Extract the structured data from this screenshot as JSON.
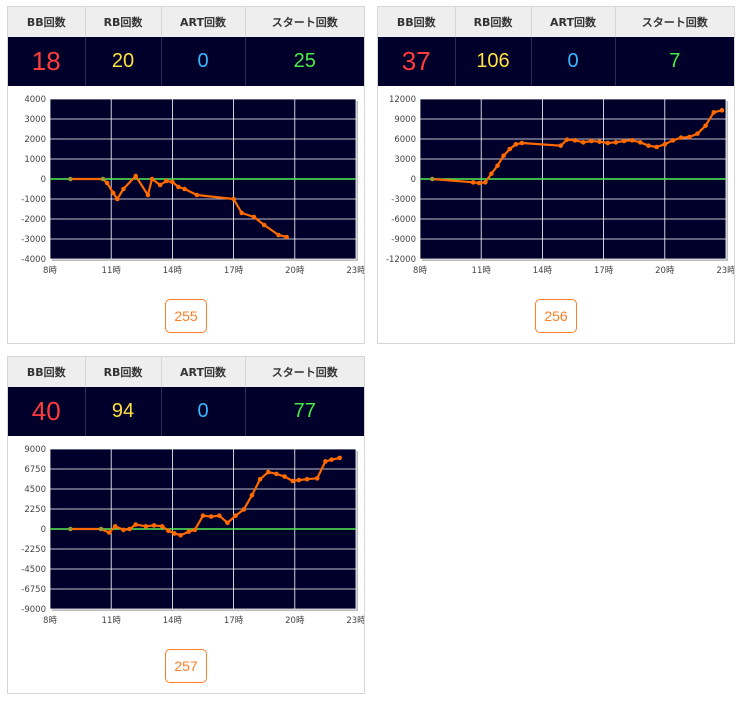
{
  "headers": {
    "bb": "BB回数",
    "rb": "RB回数",
    "art": "ART回数",
    "start": "スタート回数"
  },
  "colors": {
    "bb": "#ff3b3b",
    "rb": "#ffe040",
    "art": "#39b7ff",
    "start": "#44ee44",
    "line": "#ff6a00",
    "zero_line": "#55ee55",
    "plot_bg": "#00002b"
  },
  "cards": [
    {
      "stats": {
        "bb": "18",
        "rb": "20",
        "art": "0",
        "start": "25"
      },
      "button_label": "255",
      "chart_data": {
        "type": "line",
        "xlim": [
          8,
          23
        ],
        "xticks": [
          "8時",
          "11時",
          "14時",
          "17時",
          "20時",
          "23時"
        ],
        "ylim": [
          -4000,
          4000
        ],
        "yticks": [
          "4000",
          "3000",
          "2000",
          "1000",
          "0",
          "-1000",
          "-2000",
          "-3000",
          "-4000"
        ],
        "x": [
          9.0,
          10.6,
          10.8,
          11.1,
          11.3,
          11.6,
          12.2,
          12.8,
          13.0,
          13.4,
          13.7,
          14.0,
          14.3,
          14.6,
          15.2,
          17.0,
          17.4,
          18.0,
          18.5,
          19.2,
          19.6
        ],
        "values": [
          0,
          0,
          -200,
          -700,
          -1000,
          -500,
          150,
          -800,
          0,
          -300,
          -100,
          -150,
          -400,
          -500,
          -800,
          -1000,
          -1700,
          -1900,
          -2300,
          -2800,
          -2900
        ]
      }
    },
    {
      "stats": {
        "bb": "37",
        "rb": "106",
        "art": "0",
        "start": "7"
      },
      "button_label": "256",
      "chart_data": {
        "type": "line",
        "xlim": [
          8,
          23
        ],
        "xticks": [
          "8時",
          "11時",
          "14時",
          "17時",
          "20時",
          "23時"
        ],
        "ylim": [
          -12000,
          12000
        ],
        "yticks": [
          "12000",
          "9000",
          "6000",
          "3000",
          "0",
          "-3000",
          "-6000",
          "-9000",
          "-12000"
        ],
        "x": [
          8.6,
          10.6,
          10.9,
          11.2,
          11.5,
          11.8,
          12.1,
          12.4,
          12.7,
          13.0,
          14.9,
          15.2,
          15.6,
          16.0,
          16.4,
          16.8,
          17.2,
          17.6,
          18.0,
          18.4,
          18.8,
          19.2,
          19.6,
          20.0,
          20.4,
          20.8,
          21.2,
          21.6,
          22.0,
          22.4,
          22.8
        ],
        "values": [
          0,
          -500,
          -600,
          -500,
          800,
          2000,
          3500,
          4500,
          5200,
          5400,
          5000,
          5900,
          5800,
          5500,
          5700,
          5600,
          5400,
          5500,
          5700,
          5800,
          5500,
          5000,
          4800,
          5200,
          5800,
          6200,
          6300,
          6800,
          8000,
          10000,
          10300
        ]
      }
    },
    {
      "stats": {
        "bb": "40",
        "rb": "94",
        "art": "0",
        "start": "77"
      },
      "button_label": "257",
      "chart_data": {
        "type": "line",
        "xlim": [
          8,
          23
        ],
        "xticks": [
          "8時",
          "11時",
          "14時",
          "17時",
          "20時",
          "23時"
        ],
        "ylim": [
          -9000,
          9000
        ],
        "yticks": [
          "9000",
          "6750",
          "4500",
          "2250",
          "0",
          "-2250",
          "-4500",
          "-6750",
          "-9000"
        ],
        "x": [
          9.0,
          10.5,
          10.9,
          11.2,
          11.6,
          11.9,
          12.2,
          12.7,
          13.1,
          13.5,
          13.8,
          14.1,
          14.4,
          14.8,
          15.1,
          15.5,
          15.9,
          16.3,
          16.7,
          17.1,
          17.5,
          17.9,
          18.3,
          18.7,
          19.1,
          19.5,
          19.9,
          20.2,
          20.6,
          21.1,
          21.5,
          21.8,
          22.2
        ],
        "values": [
          0,
          0,
          -400,
          300,
          -100,
          0,
          500,
          300,
          400,
          300,
          -200,
          -500,
          -700,
          -300,
          -100,
          1500,
          1400,
          1500,
          700,
          1500,
          2200,
          3800,
          5600,
          6400,
          6200,
          5900,
          5400,
          5500,
          5600,
          5700,
          7600,
          7800,
          8000
        ]
      }
    }
  ]
}
